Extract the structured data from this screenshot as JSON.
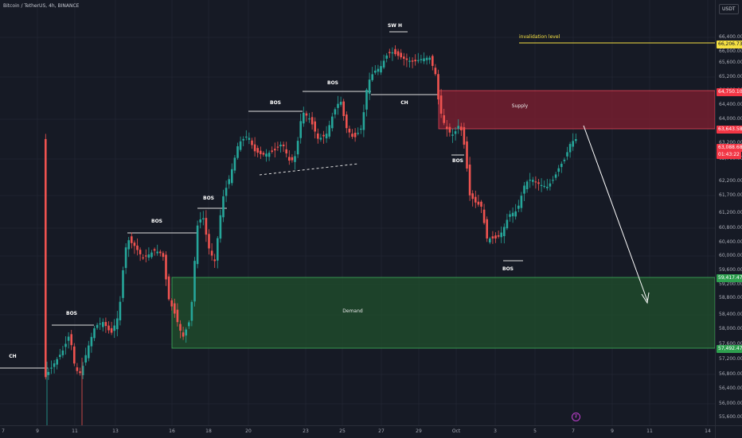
{
  "header": {
    "symbol": "Bitcoin / TetherUS, 4h, BINANCE",
    "currency": "USDT"
  },
  "price_axis": {
    "ticks": [
      "66,400.00",
      "66,000.00",
      "65,600.00",
      "65,200.00",
      "64,800.00",
      "64,400.00",
      "64,000.00",
      "63,600.00",
      "63,200.00",
      "62,700.00",
      "62,200.00",
      "61,700.00",
      "61,200.00",
      "60,800.00",
      "60,400.00",
      "60,000.00",
      "59,600.00",
      "59,200.00",
      "58,800.00",
      "58,400.00",
      "58,000.00",
      "57,600.00",
      "57,200.00",
      "56,800.00",
      "56,400.00",
      "56,000.00",
      "55,600.00"
    ],
    "badges": {
      "invalidation": "66,206.73",
      "supply_top": "64,750.10",
      "supply_bottom": "63,643.58",
      "current_price": "63,088.68",
      "countdown": "01:43:22",
      "demand_top": "59,417.47",
      "demand_bottom": "57,492.47"
    }
  },
  "time_axis": [
    "7",
    "9",
    "11",
    "13",
    "16",
    "18",
    "20",
    "23",
    "25",
    "27",
    "29",
    "Oct",
    "3",
    "5",
    "7",
    "9",
    "11",
    "14"
  ],
  "annotations": {
    "invalidation": "invalidation level",
    "supply": "Supply",
    "demand": "Demand",
    "ch": "CH",
    "bos": "BOS",
    "sw_h": "SW H"
  },
  "colors": {
    "background": "#161a25",
    "bull": "#26a69a",
    "bear": "#ef5350",
    "supply_zone": "#7a1e30",
    "demand_zone": "#1f4a2c",
    "invalidation": "#f5e042"
  }
}
